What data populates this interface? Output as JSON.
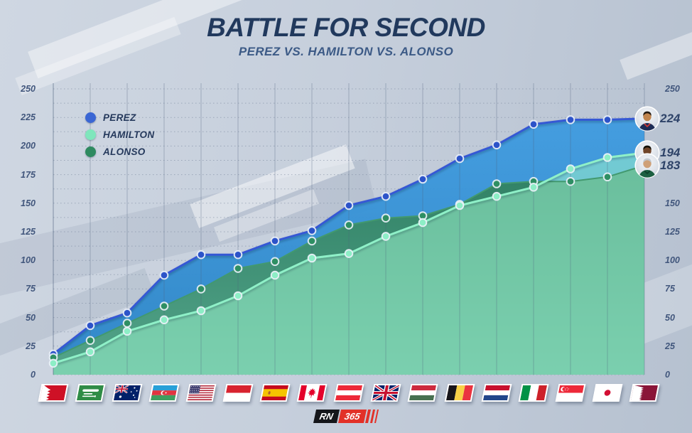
{
  "header": {
    "title": "BATTLE FOR SECOND",
    "subtitle": "PEREZ VS. HAMILTON VS. ALONSO"
  },
  "chart_data": {
    "type": "area",
    "title": "BATTLE FOR SECOND",
    "subtitle": "PEREZ VS. HAMILTON VS. ALONSO",
    "x_axis": {
      "kind": "race-flags",
      "flags": [
        "bahrain",
        "saudi-arabia",
        "australia",
        "azerbaijan",
        "usa",
        "monaco",
        "spain",
        "canada",
        "austria",
        "great-britain",
        "hungary",
        "belgium",
        "netherlands",
        "italy",
        "singapore",
        "japan",
        "qatar"
      ]
    },
    "ylim": [
      0,
      250
    ],
    "yticks_left": [
      250,
      225,
      200,
      175,
      150,
      125,
      100,
      75,
      50,
      25,
      0
    ],
    "yticks_right": [
      250,
      150,
      125,
      100,
      75,
      50,
      25,
      0
    ],
    "grid": {
      "horizontal_step": 12.5,
      "horizontal_style": "dotted",
      "vertical_per_race": true
    },
    "legend_position": "top-left",
    "series": [
      {
        "name": "PEREZ",
        "legend_color": "#3a66d4",
        "line_color": "#3558d4",
        "dot_color": "#2c53c9",
        "fill_top": "#3e9be0",
        "fill_bottom": "#2a84c6",
        "values": [
          18,
          43,
          54,
          87,
          105,
          105,
          117,
          126,
          148,
          156,
          171,
          189,
          201,
          219,
          223,
          223,
          224
        ],
        "final_label": "224"
      },
      {
        "name": "HAMILTON",
        "legend_color": "#7fe6bc",
        "line_color": "#8ff0c8",
        "dot_color": "#8deec6",
        "fill": "#9af2cc",
        "fill_opacity": 0.55,
        "values": [
          10,
          20,
          38,
          48,
          56,
          69,
          87,
          102,
          106,
          121,
          133,
          148,
          156,
          164,
          180,
          190,
          194
        ],
        "final_label": "194"
      },
      {
        "name": "ALONSO",
        "legend_color": "#2e8a60",
        "line_color": "#42996f",
        "dot_color": "#2e8f63",
        "fill_top": "#2f7f60",
        "fill_bottom": "#55a689",
        "values": [
          15,
          30,
          45,
          60,
          75,
          93,
          99,
          117,
          131,
          137,
          139,
          149,
          167,
          169,
          169,
          173,
          183
        ],
        "final_label": "183"
      }
    ]
  },
  "footer": {
    "logo": {
      "rn": "RN",
      "num": "365"
    }
  }
}
